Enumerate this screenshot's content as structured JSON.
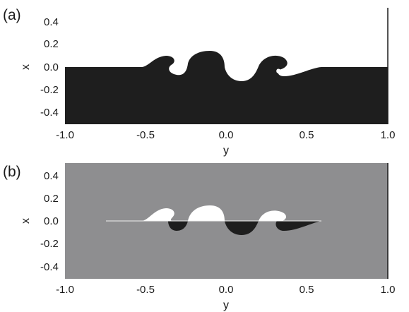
{
  "figure": {
    "colors": {
      "dark_fluid": "#1e1e1e",
      "light_fluid": "#ffffff",
      "background_gray": "#8e8e90",
      "axis": "#1a1a1a"
    },
    "panels": [
      {
        "label": "(a)",
        "xlabel": "y",
        "ylabel": "x",
        "xticks": [
          "-1.0",
          "-0.5",
          "0.0",
          "0.5",
          "1.0"
        ],
        "yticks": [
          "0.4",
          "0.2",
          "0.0",
          "-0.2",
          "-0.4"
        ]
      },
      {
        "label": "(b)",
        "xlabel": "y",
        "ylabel": "x",
        "xticks": [
          "-1.0",
          "-0.5",
          "0.0",
          "0.5",
          "1.0"
        ],
        "yticks": [
          "0.4",
          "0.2",
          "0.0",
          "-0.2",
          "-0.4"
        ]
      }
    ]
  },
  "chart_data": [
    {
      "type": "area",
      "description_panel": "(a)",
      "xlabel": "y",
      "ylabel": "x",
      "xlim": [
        -1.0,
        1.0
      ],
      "ylim": [
        -0.5,
        0.5
      ],
      "xticks": [
        -1.0,
        -0.5,
        0.0,
        0.5,
        1.0
      ],
      "yticks": [
        0.4,
        0.2,
        0.0,
        -0.2,
        -0.4
      ]
    },
    {
      "type": "area",
      "description_panel": "(b)",
      "xlabel": "y",
      "ylabel": "x",
      "xlim": [
        -1.0,
        1.0
      ],
      "ylim": [
        -0.5,
        0.5
      ],
      "xticks": [
        -1.0,
        -0.5,
        0.0,
        0.5,
        1.0
      ],
      "yticks": [
        0.4,
        0.2,
        0.0,
        -0.2,
        -0.4
      ]
    }
  ]
}
